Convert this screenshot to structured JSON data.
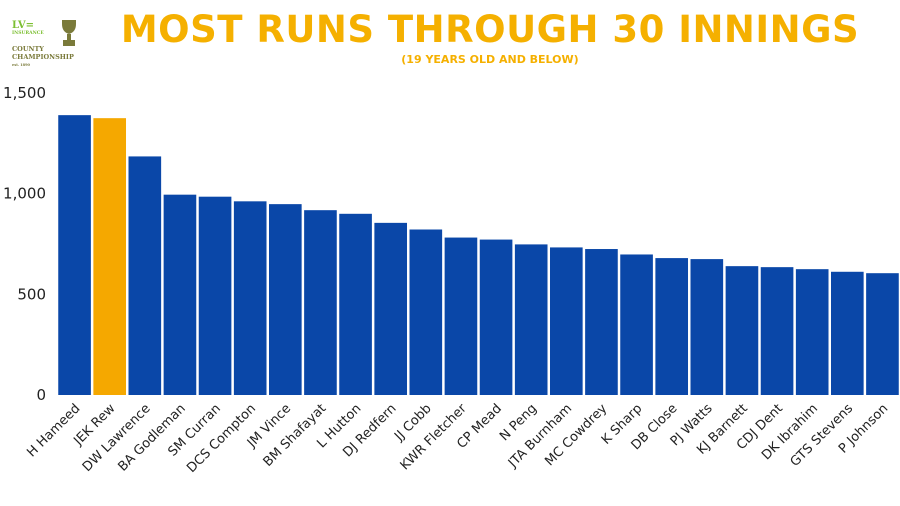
{
  "colors": {
    "title": "#f5b000",
    "bar_default": "#0a47a8",
    "bar_highlight": "#f5a800",
    "logo_green": "#7cbf32",
    "logo_olive": "#7a7a3a"
  },
  "logo": {
    "brand": "LV=",
    "brand_sub": "INSURANCE",
    "line1": "COUNTY",
    "line2": "CHAMPIONSHIP",
    "est": "est. 1890"
  },
  "chart_data": {
    "type": "bar",
    "title": "MOST RUNS THROUGH 30 INNINGS",
    "subtitle": "(19 YEARS OLD AND BELOW)",
    "xlabel": "",
    "ylabel": "",
    "ylim": [
      0,
      1500
    ],
    "yticks": [
      0,
      500,
      1000,
      1500
    ],
    "ytick_labels": [
      "0",
      "500",
      "1,000",
      "1,500"
    ],
    "grid": false,
    "highlight": "JEK Rew",
    "categories": [
      "H Hameed",
      "JEK Rew",
      "DW Lawrence",
      "BA Godleman",
      "SM Curran",
      "DCS Compton",
      "JM Vince",
      "BM Shafayat",
      "L Hutton",
      "DJ Redfern",
      "JJ Cobb",
      "KWR Fletcher",
      "CP Mead",
      "N Peng",
      "JTA Burnham",
      "MC Cowdrey",
      "K Sharp",
      "DB Close",
      "PJ Watts",
      "KJ Barnett",
      "CDJ Dent",
      "DK Ibrahim",
      "GTS Stevens",
      "P Johnson"
    ],
    "values": [
      1390,
      1375,
      1185,
      995,
      985,
      962,
      948,
      918,
      900,
      855,
      822,
      782,
      772,
      748,
      733,
      725,
      698,
      680,
      675,
      640,
      635,
      625,
      612,
      605
    ]
  }
}
